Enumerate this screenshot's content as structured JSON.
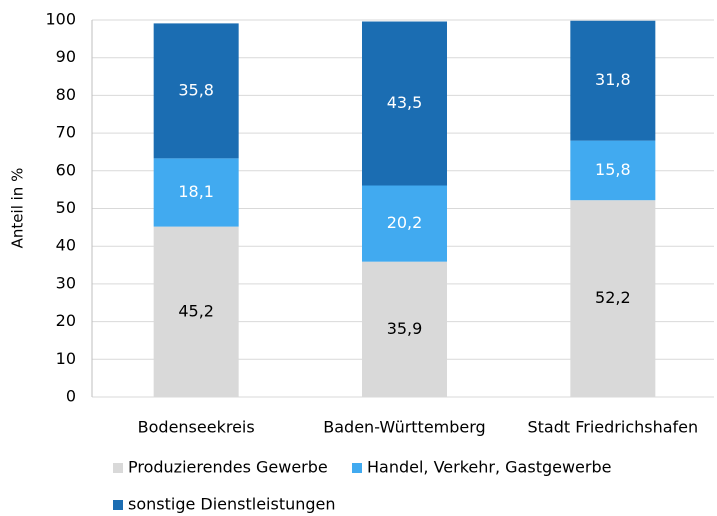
{
  "chart_data": {
    "type": "stacked_bar",
    "y_label": "Anteil in %",
    "categories": [
      "Bodenseekreis",
      "Baden-Württemberg",
      "Stadt Friedrichshafen"
    ],
    "series": [
      {
        "name": "Produzierendes Gewerbe",
        "color": "#d9d9d9",
        "label_color": "#000000",
        "values": [
          45.2,
          35.9,
          52.2
        ],
        "value_labels": [
          "45,2",
          "35,9",
          "52,2"
        ]
      },
      {
        "name": "Handel, Verkehr, Gastgewerbe",
        "color": "#41aaf0",
        "label_color": "#ffffff",
        "values": [
          18.1,
          20.2,
          15.8
        ],
        "value_labels": [
          "18,1",
          "20,2",
          "15,8"
        ]
      },
      {
        "name": "sonstige Dienstleistungen",
        "color": "#1b6db2",
        "label_color": "#ffffff",
        "values": [
          35.8,
          43.5,
          31.8
        ],
        "value_labels": [
          "35,8",
          "43,5",
          "31,8"
        ]
      }
    ],
    "ylim": [
      0,
      100
    ],
    "yticks": [
      0,
      10,
      20,
      30,
      40,
      50,
      60,
      70,
      80,
      90,
      100
    ],
    "grid": true
  }
}
